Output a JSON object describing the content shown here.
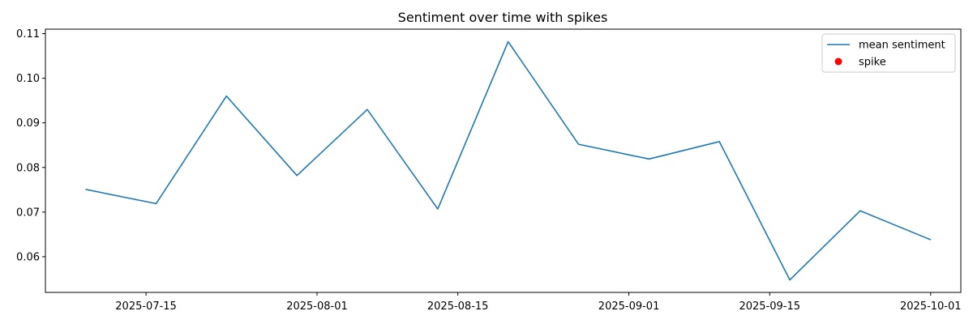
{
  "chart_data": {
    "type": "line",
    "title": "Sentiment over time with spikes",
    "xlabel": "",
    "ylabel": "",
    "x_type": "date",
    "x_range": [
      "2025-07-05",
      "2025-10-04"
    ],
    "ylim": [
      0.052,
      0.111
    ],
    "x_ticks": [
      "2025-07-15",
      "2025-08-01",
      "2025-08-15",
      "2025-09-01",
      "2025-09-15",
      "2025-10-01"
    ],
    "y_ticks": [
      0.06,
      0.07,
      0.08,
      0.09,
      0.1,
      0.11
    ],
    "y_tick_labels": [
      "0.06",
      "0.07",
      "0.08",
      "0.09",
      "0.10",
      "0.11"
    ],
    "grid": false,
    "legend_position": "top-right",
    "series": [
      {
        "name": "mean sentiment",
        "kind": "line",
        "color": "#1f77b4",
        "x": [
          "2025-07-09",
          "2025-07-16",
          "2025-07-23",
          "2025-07-30",
          "2025-08-06",
          "2025-08-13",
          "2025-08-20",
          "2025-08-27",
          "2025-09-03",
          "2025-09-10",
          "2025-09-17",
          "2025-09-24",
          "2025-10-01"
        ],
        "values": [
          0.0751,
          0.0719,
          0.096,
          0.0782,
          0.093,
          0.0707,
          0.1082,
          0.0852,
          0.0819,
          0.0858,
          0.0548,
          0.0703,
          0.0638
        ]
      },
      {
        "name": "spike",
        "kind": "scatter",
        "color": "#ff0000",
        "x": [],
        "values": []
      }
    ]
  }
}
